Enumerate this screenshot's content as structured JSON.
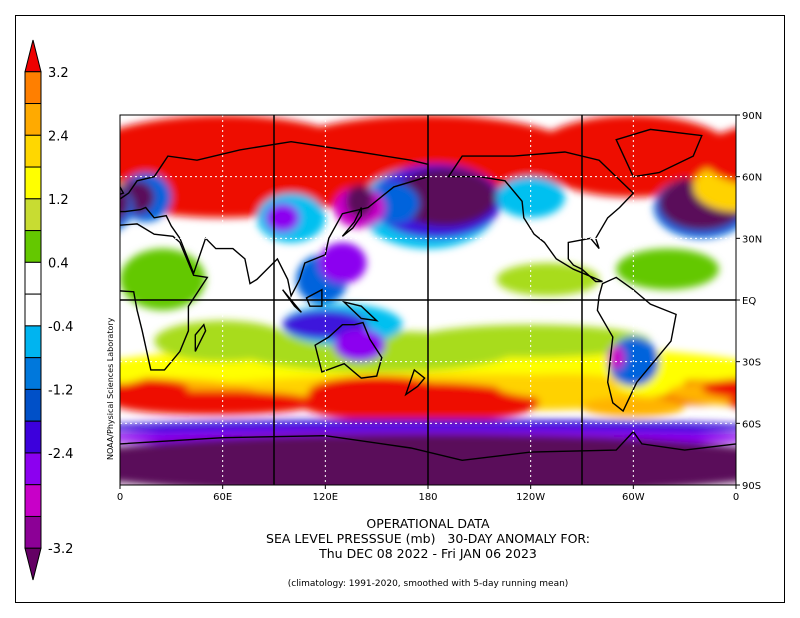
{
  "title": {
    "line1": "OPERATIONAL DATA",
    "line2": "SEA LEVEL PRESSSUE (mb)   30-DAY ANOMALY FOR:",
    "line3": "Thu DEC 08 2022 - Fri JAN 06 2023",
    "note": "(climatology: 1991-2020, smoothed with 5-day running mean)"
  },
  "credit": "NOAA/Physical Sciences Laboratory",
  "colorbar": {
    "labels": [
      "3.2",
      "2.4",
      "1.2",
      "0.4",
      "-0.4",
      "-1.2",
      "-2.4",
      "-3.2"
    ],
    "colors": [
      "#ee0000",
      "#ff7f00",
      "#ffaa00",
      "#ffd700",
      "#ffff00",
      "#c8dc32",
      "#64c800",
      "#ffffff",
      "#ffffff",
      "#00b4f0",
      "#0078dc",
      "#0050c8",
      "#3c00dc",
      "#8c00f0",
      "#c800c8",
      "#8c0096",
      "#640064"
    ]
  },
  "map": {
    "lon_labels": [
      "0",
      "60E",
      "120E",
      "180",
      "120W",
      "60W",
      "0"
    ],
    "lat_labels": [
      "90N",
      "60N",
      "30N",
      "EQ",
      "30S",
      "60S",
      "90S"
    ],
    "colors": {
      "strong_pos": "#ee1100",
      "orange": "#ff8c00",
      "amber": "#ffb400",
      "gold": "#ffd200",
      "yellow": "#ffff00",
      "lime": "#a8dc1e",
      "green": "#64c800",
      "neutral": "#ffffff",
      "cyan": "#00c0f0",
      "blue": "#0064dc",
      "indigo": "#3c14dc",
      "violet": "#8c00f0",
      "magenta": "#c800c8",
      "deep_purple": "#5a0a5a"
    }
  }
}
